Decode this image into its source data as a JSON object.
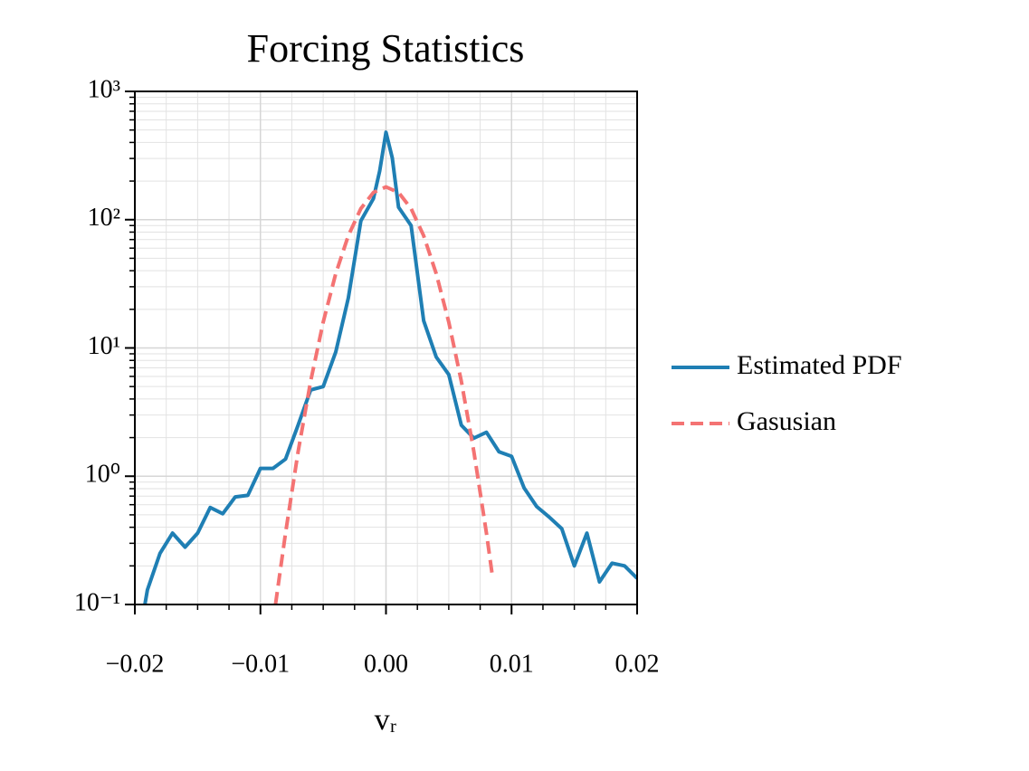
{
  "chart_data": {
    "type": "line",
    "title": "Forcing Statistics",
    "x_label": "vᵣ",
    "xlim": [
      -0.02,
      0.02
    ],
    "xticks": [
      {
        "value": -0.02,
        "label": "−0.02"
      },
      {
        "value": -0.01,
        "label": "−0.01"
      },
      {
        "value": 0,
        "label": "0.00"
      },
      0.01,
      0.02
    ],
    "ylim": [
      0.1,
      1000
    ],
    "y_scale": "log",
    "yticks": [
      {
        "value": 0.1,
        "label": "10⁻¹"
      },
      {
        "value": 1,
        "label": "10⁰"
      },
      {
        "value": 10,
        "label": "10¹"
      },
      {
        "value": 100,
        "label": "10²"
      },
      {
        "value": 1000,
        "label": "10³"
      }
    ],
    "grid": true,
    "legend": "right",
    "series": [
      {
        "name": "Estimated PDF",
        "color": "#1f7fb4",
        "style": "solid",
        "x": [
          -0.0192,
          -0.019,
          -0.018,
          -0.017,
          -0.016,
          -0.015,
          -0.014,
          -0.013,
          -0.012,
          -0.011,
          -0.01,
          -0.009,
          -0.008,
          -0.007,
          -0.006,
          -0.005,
          -0.004,
          -0.003,
          -0.002,
          -0.001,
          -0.0005,
          0,
          0.0005,
          0.001,
          0.002,
          0.003,
          0.004,
          0.005,
          0.006,
          0.007,
          0.008,
          0.009,
          0.01,
          0.011,
          0.012,
          0.013,
          0.014,
          0.015,
          0.016,
          0.017,
          0.018,
          0.019,
          0.02
        ],
        "values": [
          0.1,
          0.13,
          0.25,
          0.36,
          0.28,
          0.36,
          0.57,
          0.51,
          0.69,
          0.71,
          1.15,
          1.15,
          1.36,
          2.5,
          4.7,
          5.0,
          9.3,
          24.5,
          98,
          146,
          240,
          480,
          303,
          125,
          90,
          16.3,
          8.5,
          6.2,
          2.5,
          1.98,
          2.2,
          1.55,
          1.43,
          0.81,
          0.58,
          0.48,
          0.39,
          0.2,
          0.36,
          0.15,
          0.21,
          0.2,
          0.16
        ]
      },
      {
        "name": "Gasusian",
        "color": "#f47373",
        "style": "dashed",
        "x": [
          -0.0088,
          -0.008,
          -0.007,
          -0.006,
          -0.005,
          -0.004,
          -0.003,
          -0.002,
          -0.001,
          0,
          0.001,
          0.002,
          0.003,
          0.004,
          0.005,
          0.006,
          0.007,
          0.008,
          0.0085
        ],
        "values": [
          0.1,
          0.36,
          1.55,
          5.5,
          15.9,
          38,
          75,
          122,
          163,
          180,
          163,
          122,
          75,
          38,
          15.9,
          5.5,
          1.55,
          0.36,
          0.16
        ]
      }
    ]
  }
}
